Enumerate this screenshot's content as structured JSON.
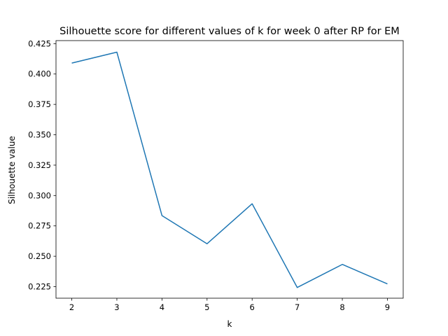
{
  "chart_data": {
    "type": "line",
    "title": "Silhouette score for different values of k for week 0 after RP for EM",
    "xlabel": "k",
    "ylabel": "Silhouette value",
    "x": [
      2,
      3,
      4,
      5,
      6,
      7,
      8,
      9
    ],
    "series": [
      {
        "values": [
          0.409,
          0.418,
          0.2835,
          0.2603,
          0.2932,
          0.2243,
          0.2433,
          0.2273
        ],
        "color": "#1f77b4"
      }
    ],
    "xticks": [
      "2",
      "3",
      "4",
      "5",
      "6",
      "7",
      "8",
      "9"
    ],
    "yticks": [
      "0.225",
      "0.250",
      "0.275",
      "0.300",
      "0.325",
      "0.350",
      "0.375",
      "0.400",
      "0.425"
    ],
    "ylim": [
      0.2155,
      0.4275
    ],
    "xlim": [
      1.65,
      9.35
    ],
    "grid": false,
    "legend": "none"
  }
}
